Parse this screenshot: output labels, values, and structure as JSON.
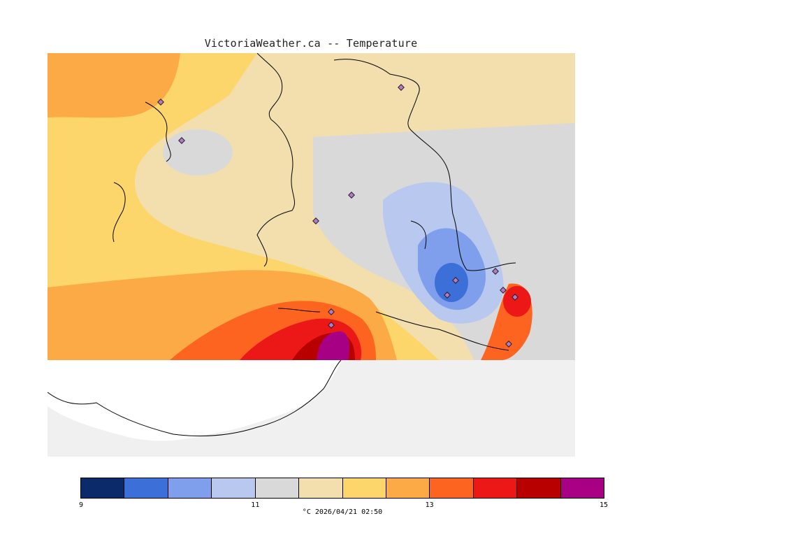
{
  "title": "VictoriaWeather.ca -- Temperature",
  "legend": {
    "colors": [
      "#0b2a6a",
      "#3c6fd8",
      "#7f9fec",
      "#b9c8ef",
      "#d9d9d9",
      "#f2dfad",
      "#fdd66b",
      "#fcaa46",
      "#fd6420",
      "#ec1717",
      "#b80000",
      "#a80084"
    ],
    "ticks": [
      {
        "label": "9"
      },
      {
        "label": "11"
      },
      {
        "label": "13"
      },
      {
        "label": "15"
      }
    ],
    "units_timestamp": "°C  2026/04/21 02:50"
  },
  "map": {
    "background": "#f0f0f0",
    "station_marker_color": "#b678c8"
  }
}
